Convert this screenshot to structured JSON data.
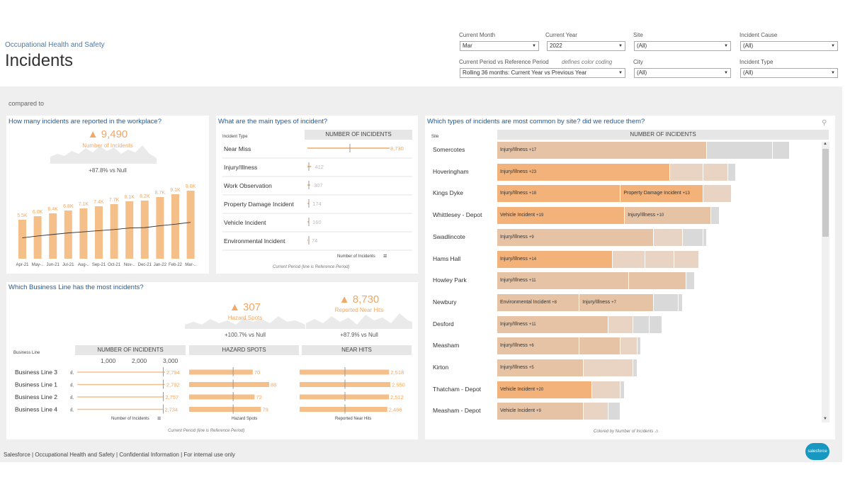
{
  "header": {
    "subtitle": "Occupational Health and Safety",
    "title": "Incidents",
    "compared_to": "compared to"
  },
  "filters": {
    "current_month": {
      "label": "Current Month",
      "value": "Mar"
    },
    "current_year": {
      "label": "Current Year",
      "value": "2022"
    },
    "site": {
      "label": "Site",
      "value": "(All)"
    },
    "incident_cause": {
      "label": "Incident Cause",
      "value": "(All)"
    },
    "period": {
      "label": "Current Period vs Reference Period",
      "note": "defines color coding",
      "value": "Rolling 36 months: Current Year vs Previous Year"
    },
    "city": {
      "label": "City",
      "value": "(All)"
    },
    "incident_type": {
      "label": "Incident Type",
      "value": "(All)"
    }
  },
  "colors": {
    "accent": "#f0a868",
    "bar": "#f5bf8a",
    "title": "#1f5a99",
    "grey": "#d9d9d9",
    "tan": "#e6c3a5"
  },
  "workplace": {
    "title": "How many incidents are reported in the workplace?",
    "kpi": "▲ 9,490",
    "kpi_label": "Number of Incidents",
    "compare": "+87.8% vs Null",
    "chart_data": {
      "type": "bar",
      "categories": [
        "Apr-21",
        "May-..",
        "Jun-21",
        "Jul-21",
        "Aug-..",
        "Sep-21",
        "Oct-21",
        "Nov-..",
        "Dec-21",
        "Jan-22",
        "Feb-22",
        "Mar-.."
      ],
      "values": [
        5500,
        6000,
        6400,
        6800,
        7100,
        7400,
        7700,
        8100,
        8200,
        8700,
        9100,
        9600
      ],
      "labels": [
        "5.5K",
        "6.0K",
        "6.4K",
        "6.8K",
        "7.1K",
        "7.4K",
        "7.7K",
        "8.1K",
        "8.2K",
        "8.7K",
        "9.1K",
        "9.6K"
      ],
      "trend_line": "reference period"
    }
  },
  "types": {
    "title": "What are the main types of incident?",
    "col_label": "Incident Type",
    "header": "NUMBER OF INCIDENTS",
    "axis_label": "Number of Incidents",
    "caption": "Current Period  (line is Reference Period)",
    "chart_data": {
      "type": "bar",
      "categories": [
        "Near Miss",
        "Injury/Illness",
        "Work Observation",
        "Property Damage Incident",
        "Vehicle Incident",
        "Environmental Incident"
      ],
      "values": [
        8730,
        412,
        307,
        174,
        160,
        74
      ],
      "labels": [
        "8,730",
        "412",
        "307",
        "174",
        "160",
        "74"
      ]
    }
  },
  "business": {
    "title": "Which Business Line has the most incidents?",
    "hazard_kpi": "▲ 307",
    "hazard_label": "Hazard Spots",
    "hazard_compare": "+100.7% vs Null",
    "near_kpi": "▲ 8,730",
    "near_label": "Reported Near Hits",
    "near_compare": "+87.9% vs Null",
    "col_label": "Business Line",
    "headers": [
      "NUMBER OF INCIDENTS",
      "HAZARD SPOTS",
      "NEAR HITS"
    ],
    "ticks": [
      "1,000",
      "2,000",
      "3,000"
    ],
    "axis_labels": [
      "Number of Incidents",
      "Hazard Spots",
      "Reported Near Hits"
    ],
    "caption": "Current Period  (line is Reference Period)",
    "chart_data": {
      "type": "bar",
      "categories": [
        "Business Line 3",
        "Business Line 1",
        "Business Line 2",
        "Business Line 4"
      ],
      "series": [
        {
          "name": "NUMBER OF INCIDENTS",
          "values": [
            2794,
            2792,
            2757,
            2734
          ],
          "labels": [
            "2,794",
            "2,792",
            "2,757",
            "2,734"
          ]
        },
        {
          "name": "HAZARD SPOTS",
          "values": [
            70,
            88,
            72,
            79
          ],
          "labels": [
            "70",
            "88",
            "72",
            "79"
          ]
        },
        {
          "name": "NEAR HITS",
          "values": [
            2518,
            2550,
            2512,
            2466
          ],
          "labels": [
            "2,518",
            "2,550",
            "2,512",
            "2,466"
          ]
        }
      ]
    }
  },
  "sites": {
    "title": "Which types of incidents are most common by site? did we reduce them?",
    "col_label": "Site",
    "header": "NUMBER OF INCIDENTS",
    "caption": "Colored by Number of Incidents ⚠",
    "chart_data": {
      "type": "bar",
      "stacked": true,
      "max": 8000,
      "rows": [
        {
          "site": "Somercotes",
          "segs": [
            {
              "label": "Injury/Illness",
              "delta": "+17",
              "v": 5100,
              "c": "tan"
            },
            {
              "v": 1600,
              "c": "grey"
            },
            {
              "v": 400,
              "c": "grey"
            }
          ]
        },
        {
          "site": "Hoveringham",
          "segs": [
            {
              "label": "Injury/Illness",
              "delta": "+23",
              "v": 4200,
              "c": "or"
            },
            {
              "v": 800,
              "c": "tl"
            },
            {
              "v": 600,
              "c": "tl"
            },
            {
              "v": 200,
              "c": "grey"
            }
          ]
        },
        {
          "site": "Kings Dyke",
          "segs": [
            {
              "label": "Injury/Illness",
              "delta": "+18",
              "v": 3000,
              "c": "or"
            },
            {
              "label": "Property Damage Incident",
              "delta": "+13",
              "v": 2000,
              "c": "or"
            },
            {
              "v": 700,
              "c": "tl"
            }
          ]
        },
        {
          "site": "Whittlesey - Depot",
          "segs": [
            {
              "label": "Vehicle Incident",
              "delta": "+19",
              "v": 3100,
              "c": "or"
            },
            {
              "label": "Injury/Illness",
              "delta": "+10",
              "v": 2100,
              "c": "tan"
            },
            {
              "v": 200,
              "c": "grey"
            }
          ]
        },
        {
          "site": "Swadlincote",
          "segs": [
            {
              "label": "Injury/Illness",
              "delta": "+9",
              "v": 3800,
              "c": "tan"
            },
            {
              "v": 700,
              "c": "tl"
            },
            {
              "v": 500,
              "c": "grey"
            },
            {
              "v": 100,
              "c": "grey"
            }
          ]
        },
        {
          "site": "Hams Hall",
          "segs": [
            {
              "label": "Injury/Illness",
              "delta": "+14",
              "v": 2800,
              "c": "or"
            },
            {
              "v": 800,
              "c": "tl"
            },
            {
              "v": 700,
              "c": "tl"
            },
            {
              "v": 600,
              "c": "tl"
            }
          ]
        },
        {
          "site": "Howley Park",
          "segs": [
            {
              "label": "Injury/Illness",
              "delta": "+11",
              "v": 3200,
              "c": "tan"
            },
            {
              "v": 1400,
              "c": "tan"
            },
            {
              "v": 200,
              "c": "grey"
            }
          ]
        },
        {
          "site": "Newbury",
          "segs": [
            {
              "label": "Environmental Incident",
              "delta": "+8",
              "v": 2000,
              "c": "tan"
            },
            {
              "label": "Injury/Illness",
              "delta": "+7",
              "v": 1800,
              "c": "tan"
            },
            {
              "v": 600,
              "c": "grey"
            },
            {
              "v": 100,
              "c": "grey"
            }
          ]
        },
        {
          "site": "Desford",
          "segs": [
            {
              "label": "Injury/Illness",
              "delta": "+11",
              "v": 2700,
              "c": "tan"
            },
            {
              "v": 600,
              "c": "tl"
            },
            {
              "v": 400,
              "c": "grey"
            },
            {
              "v": 300,
              "c": "grey"
            }
          ]
        },
        {
          "site": "Measham",
          "segs": [
            {
              "label": "Injury/Illness",
              "delta": "+6",
              "v": 2000,
              "c": "tan"
            },
            {
              "v": 1000,
              "c": "tan"
            },
            {
              "v": 400,
              "c": "tl"
            },
            {
              "v": 100,
              "c": "grey"
            }
          ]
        },
        {
          "site": "Kirton",
          "segs": [
            {
              "label": "Injury/Illness",
              "delta": "+5",
              "v": 2100,
              "c": "tan"
            },
            {
              "v": 1200,
              "c": "tl"
            },
            {
              "v": 100,
              "c": "grey"
            }
          ]
        },
        {
          "site": "Thatcham - Depot",
          "segs": [
            {
              "label": "Vehicle Incident",
              "delta": "+20",
              "v": 2300,
              "c": "or"
            },
            {
              "v": 700,
              "c": "tl"
            },
            {
              "v": 100,
              "c": "grey"
            }
          ]
        },
        {
          "site": "Measham - Depot",
          "segs": [
            {
              "label": "Vehicle Incident",
              "delta": "+9",
              "v": 2100,
              "c": "tan"
            },
            {
              "v": 600,
              "c": "tl"
            },
            {
              "v": 300,
              "c": "grey"
            }
          ]
        }
      ]
    }
  },
  "footer": "Salesforce | Occupational Health and Safety | Confidential Information | For internal use only",
  "logo": "salesforce"
}
